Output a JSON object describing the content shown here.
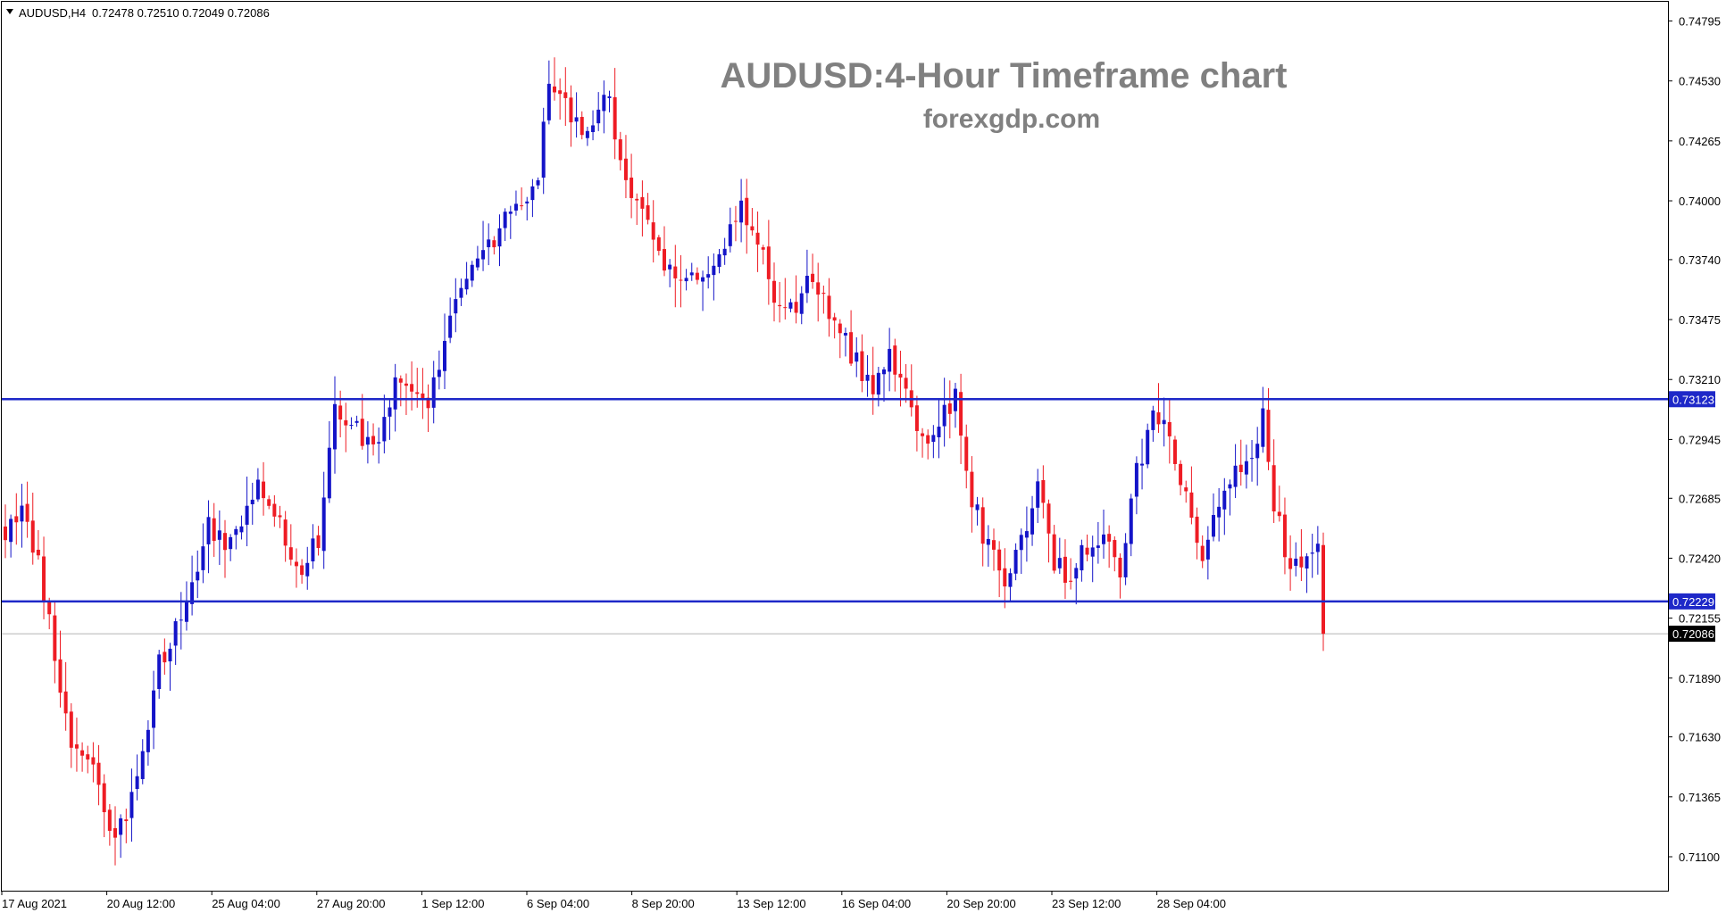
{
  "header": {
    "symbol": "AUDUSD,H4",
    "ohlc": "0.72478 0.72510 0.72049 0.72086",
    "menu_icon": "triangle-down-icon"
  },
  "overlay": {
    "title": "AUDUSD:4-Hour Timeframe chart",
    "subtitle": "forexgdp.com"
  },
  "colors": {
    "bull": "#1414c8",
    "bear": "#ee1c24",
    "level_line": "#1e28c8",
    "overlay_text": "#808080",
    "last_price_line": "#b4b4b4"
  },
  "chart_data": {
    "type": "candlestick",
    "timeframe": "H4",
    "ylim": [
      0.7095,
      0.7488
    ],
    "y_ticks": [
      "0.74795",
      "0.74530",
      "0.74265",
      "0.74000",
      "0.73740",
      "0.73475",
      "0.73210",
      "0.72945",
      "0.72685",
      "0.72420",
      "0.72155",
      "0.71890",
      "0.71630",
      "0.71365",
      "0.71100"
    ],
    "x_ticks": [
      "17 Aug 2021",
      "20 Aug 12:00",
      "25 Aug 04:00",
      "27 Aug 20:00",
      "1 Sep 12:00",
      "6 Sep 04:00",
      "8 Sep 20:00",
      "13 Sep 12:00",
      "16 Sep 04:00",
      "20 Sep 20:00",
      "23 Sep 12:00",
      "28 Sep 04:00"
    ],
    "horizontal_levels": [
      {
        "label": "0.73123",
        "value": 0.73123
      },
      {
        "label": "0.72229",
        "value": 0.72229
      }
    ],
    "last_price": {
      "label": "0.72086",
      "value": 0.72086
    },
    "waypoints": [
      {
        "i": 0,
        "v": 0.725
      },
      {
        "i": 3,
        "v": 0.7264
      },
      {
        "i": 6,
        "v": 0.724
      },
      {
        "i": 9,
        "v": 0.72
      },
      {
        "i": 12,
        "v": 0.7155
      },
      {
        "i": 16,
        "v": 0.715
      },
      {
        "i": 20,
        "v": 0.7115
      },
      {
        "i": 24,
        "v": 0.7145
      },
      {
        "i": 28,
        "v": 0.7195
      },
      {
        "i": 33,
        "v": 0.7225
      },
      {
        "i": 37,
        "v": 0.7258
      },
      {
        "i": 40,
        "v": 0.7248
      },
      {
        "i": 46,
        "v": 0.7272
      },
      {
        "i": 50,
        "v": 0.7255
      },
      {
        "i": 54,
        "v": 0.7233
      },
      {
        "i": 57,
        "v": 0.7252
      },
      {
        "i": 60,
        "v": 0.731
      },
      {
        "i": 65,
        "v": 0.7294
      },
      {
        "i": 69,
        "v": 0.73
      },
      {
        "i": 72,
        "v": 0.7325
      },
      {
        "i": 77,
        "v": 0.731
      },
      {
        "i": 81,
        "v": 0.735
      },
      {
        "i": 85,
        "v": 0.7375
      },
      {
        "i": 88,
        "v": 0.738
      },
      {
        "i": 93,
        "v": 0.74
      },
      {
        "i": 97,
        "v": 0.7405
      },
      {
        "i": 99,
        "v": 0.7455
      },
      {
        "i": 102,
        "v": 0.744
      },
      {
        "i": 105,
        "v": 0.7432
      },
      {
        "i": 108,
        "v": 0.744
      },
      {
        "i": 110,
        "v": 0.7446
      },
      {
        "i": 113,
        "v": 0.7405
      },
      {
        "i": 117,
        "v": 0.7395
      },
      {
        "i": 120,
        "v": 0.737
      },
      {
        "i": 123,
        "v": 0.736
      },
      {
        "i": 126,
        "v": 0.7365
      },
      {
        "i": 130,
        "v": 0.738
      },
      {
        "i": 134,
        "v": 0.7395
      },
      {
        "i": 137,
        "v": 0.7385
      },
      {
        "i": 140,
        "v": 0.736
      },
      {
        "i": 144,
        "v": 0.7355
      },
      {
        "i": 147,
        "v": 0.7367
      },
      {
        "i": 151,
        "v": 0.7345
      },
      {
        "i": 155,
        "v": 0.7328
      },
      {
        "i": 158,
        "v": 0.7315
      },
      {
        "i": 161,
        "v": 0.733
      },
      {
        "i": 164,
        "v": 0.732
      },
      {
        "i": 167,
        "v": 0.7295
      },
      {
        "i": 170,
        "v": 0.73
      },
      {
        "i": 173,
        "v": 0.7315
      },
      {
        "i": 176,
        "v": 0.727
      },
      {
        "i": 179,
        "v": 0.7245
      },
      {
        "i": 182,
        "v": 0.7235
      },
      {
        "i": 185,
        "v": 0.725
      },
      {
        "i": 188,
        "v": 0.7275
      },
      {
        "i": 191,
        "v": 0.724
      },
      {
        "i": 194,
        "v": 0.7232
      },
      {
        "i": 197,
        "v": 0.7248
      },
      {
        "i": 200,
        "v": 0.7255
      },
      {
        "i": 203,
        "v": 0.7237
      },
      {
        "i": 206,
        "v": 0.728
      },
      {
        "i": 209,
        "v": 0.7305
      },
      {
        "i": 212,
        "v": 0.7298
      },
      {
        "i": 215,
        "v": 0.727
      },
      {
        "i": 218,
        "v": 0.7245
      },
      {
        "i": 221,
        "v": 0.7262
      },
      {
        "i": 224,
        "v": 0.7278
      },
      {
        "i": 227,
        "v": 0.7287
      },
      {
        "i": 229,
        "v": 0.7305
      },
      {
        "i": 231,
        "v": 0.7268
      },
      {
        "i": 234,
        "v": 0.7235
      },
      {
        "i": 237,
        "v": 0.7242
      },
      {
        "i": 239,
        "v": 0.7248
      },
      {
        "i": 240,
        "v": 0.7209
      }
    ]
  }
}
